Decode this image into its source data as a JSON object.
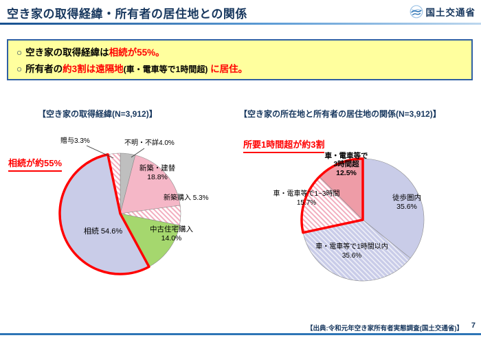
{
  "header": {
    "title": "空き家の取得経緯・所有者の居住地との関係",
    "logo_text": "国土交通省"
  },
  "summary": {
    "bullet1": {
      "marker": "○",
      "black1": "空き家の取得経緯は",
      "red1": "相続が55%。"
    },
    "bullet2": {
      "marker": "○",
      "black1": "所有者の",
      "red1": "約3割は遠隔地",
      "black2": "(車・電車等で1時間超)",
      "red2": " に居住。"
    }
  },
  "chart_data": [
    {
      "type": "pie",
      "title": "空き家の取得経緯",
      "title_display": "【空き家の取得経緯(N=3,912)】",
      "n": "N=3,912",
      "annotation": "相続が約55%",
      "highlight_color": "#FF0000",
      "slices": [
        {
          "label": "不明・不詳",
          "value": 4.0,
          "display": "不明・不詳4.0%",
          "fill": "gray"
        },
        {
          "label": "新築・建替",
          "value": 18.8,
          "display": "新築・建替\n18.8%",
          "fill": "pink"
        },
        {
          "label": "新築購入",
          "value": 5.3,
          "display": "新築購入  5.3%",
          "fill": "hatch-pink"
        },
        {
          "label": "中古住宅購入",
          "value": 14.0,
          "display": "中古住宅購入\n14.0%",
          "fill": "green"
        },
        {
          "label": "相続",
          "value": 54.6,
          "display": "相続  54.6%",
          "fill": "lavender",
          "highlight": true
        },
        {
          "label": "贈与",
          "value": 3.3,
          "display": "贈与3.3%",
          "fill": "hatch-pink"
        }
      ]
    },
    {
      "type": "pie",
      "title": "空き家の所在地と所有者の居住地の関係",
      "title_display": "【空き家の所在地と所有者の居住地の関係(N=3,912)】",
      "n": "N=3,912",
      "annotation": "所要1時間超が約3割",
      "highlight_color": "#FF0000",
      "slices": [
        {
          "label": "徒歩圏内",
          "value": 35.6,
          "display": "徒歩圏内\n35.6%",
          "fill": "lavender"
        },
        {
          "label": "車・電車等で1時間以内",
          "value": 35.6,
          "display": "車・電車等で1時間以内\n35.6%",
          "fill": "hatch-lavender"
        },
        {
          "label": "車・電車等で1~3時間",
          "value": 15.7,
          "display": "車・電車等で1~3時間\n15.7%",
          "fill": "hatch-pink",
          "highlight": true
        },
        {
          "label": "車・電車等で3時間超",
          "value": 12.5,
          "display": "車・電車等で\n3時間超\n12.5%",
          "fill": "salmon",
          "highlight": true
        }
      ]
    }
  ],
  "palette": {
    "lavender": "#C9CCE8",
    "pink": "#F5B7C7",
    "green": "#A5D76E",
    "gray": "#BFBFBF",
    "salmon": "#EE9CA7",
    "hatch-pink": "url(#hatchPink)",
    "hatch-lavender": "url(#hatchLav)"
  },
  "theme": {
    "red": "#FF0000",
    "navy": "#17375E",
    "box-bg": "#FFFF9E",
    "box-border": "#2E5FA3",
    "rule": "#2E75B6"
  },
  "footer": {
    "source": "【出典:令和元年空き家所有者実態調査(国土交通省)】",
    "page_number": "7"
  }
}
